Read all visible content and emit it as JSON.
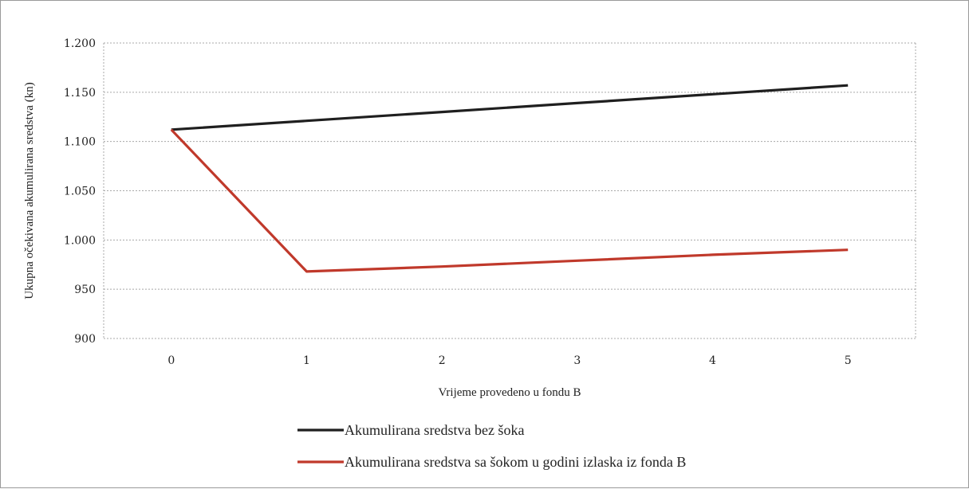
{
  "chart_data": {
    "type": "line",
    "title": "",
    "xlabel": "Vrijeme provedeno u fondu B",
    "ylabel": "Ukupna očekivana akumulirana sredstva (kn)",
    "categories": [
      "0",
      "1",
      "2",
      "3",
      "4",
      "5"
    ],
    "ylim": [
      900,
      1200
    ],
    "yticks": [
      900,
      950,
      1000,
      1050,
      1100,
      1150,
      1200
    ],
    "ytick_labels": [
      "900",
      "950",
      "1.000",
      "1.050",
      "1.100",
      "1.150",
      "1.200"
    ],
    "grid": true,
    "legend_position": "bottom",
    "series": [
      {
        "name": "Akumulirana sredstva bez šoka",
        "color": "#1f1f1f",
        "values": [
          1112,
          1121,
          1130,
          1139,
          1148,
          1157
        ]
      },
      {
        "name": "Akumulirana sredstva sa šokom u godini izlaska iz fonda B",
        "color": "#c0392b",
        "values": [
          1112,
          968,
          973,
          979,
          985,
          990
        ]
      }
    ]
  }
}
